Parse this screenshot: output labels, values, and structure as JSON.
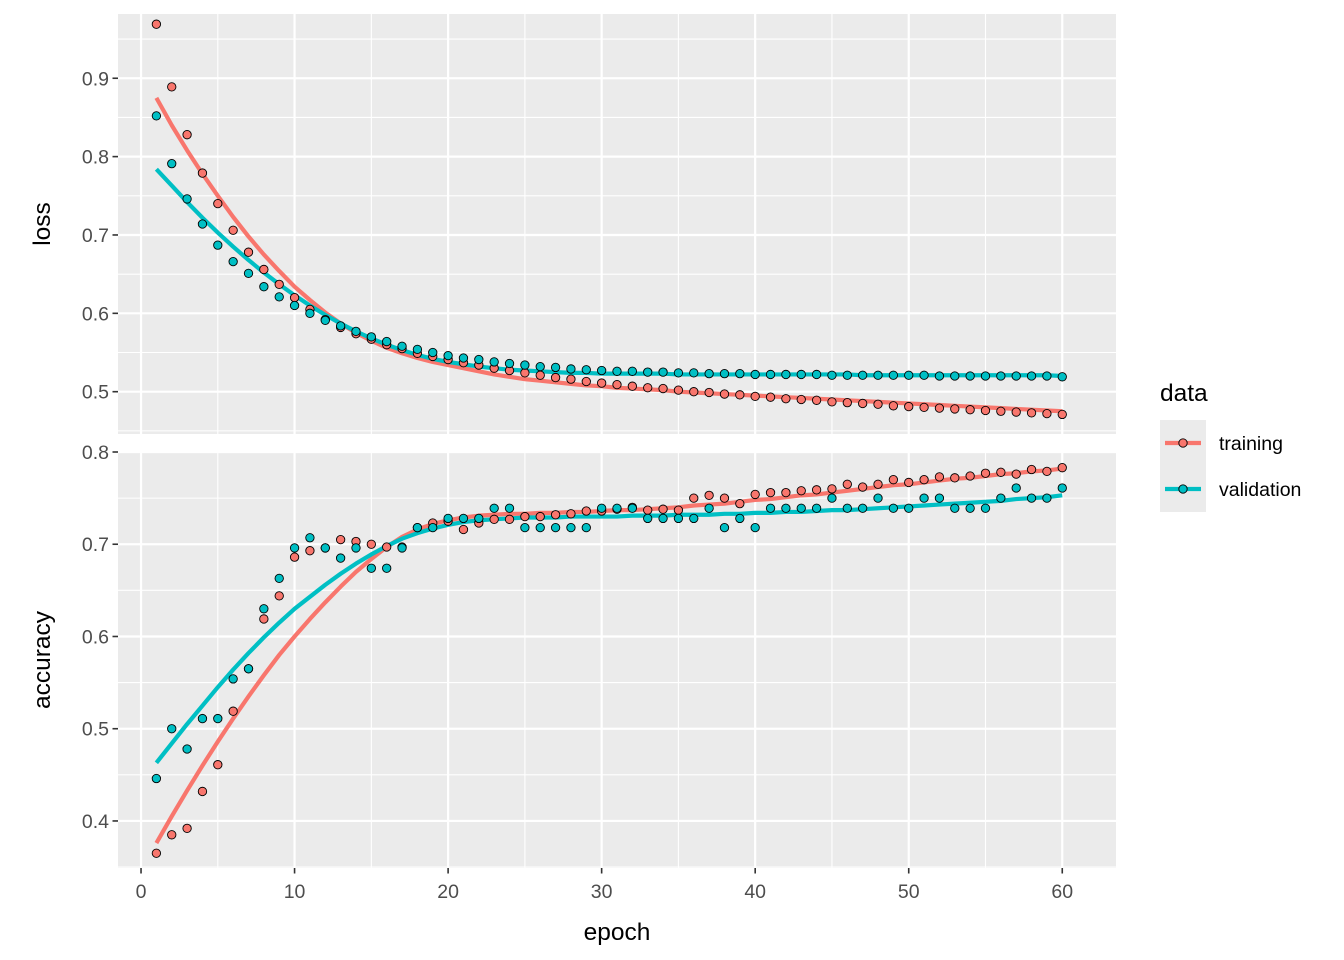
{
  "chart_data": {
    "type": "scatter",
    "facets": [
      "loss",
      "accuracy"
    ],
    "xlabel": "epoch",
    "xlim": [
      -1.5,
      63.5
    ],
    "x_ticks": [
      0,
      10,
      20,
      30,
      40,
      50,
      60
    ],
    "legend": {
      "title": "data",
      "position": "right",
      "entries": [
        {
          "name": "training",
          "color": "#f8766d"
        },
        {
          "name": "validation",
          "color": "#00bfc4"
        }
      ]
    },
    "panels": [
      {
        "name": "loss",
        "ylabel": "loss",
        "ylim": [
          0.446,
          0.982
        ],
        "y_ticks": [
          0.5,
          0.6,
          0.7,
          0.8,
          0.9
        ],
        "y_tick_labels": [
          "0.5",
          "0.6",
          "0.7",
          "0.8",
          "0.9"
        ],
        "series": [
          {
            "name": "training",
            "color": "#f8766d",
            "x": [
              1,
              2,
              3,
              4,
              5,
              6,
              7,
              8,
              9,
              10,
              11,
              12,
              13,
              14,
              15,
              16,
              17,
              18,
              19,
              20,
              21,
              22,
              23,
              24,
              25,
              26,
              27,
              28,
              29,
              30,
              31,
              32,
              33,
              34,
              35,
              36,
              37,
              38,
              39,
              40,
              41,
              42,
              43,
              44,
              45,
              46,
              47,
              48,
              49,
              50,
              51,
              52,
              53,
              54,
              55,
              56,
              57,
              58,
              59,
              60
            ],
            "y": [
              0.969,
              0.889,
              0.828,
              0.779,
              0.74,
              0.706,
              0.678,
              0.656,
              0.637,
              0.62,
              0.605,
              0.592,
              0.582,
              0.574,
              0.567,
              0.56,
              0.555,
              0.549,
              0.545,
              0.541,
              0.537,
              0.534,
              0.53,
              0.527,
              0.524,
              0.521,
              0.518,
              0.516,
              0.513,
              0.511,
              0.509,
              0.507,
              0.505,
              0.504,
              0.502,
              0.5,
              0.499,
              0.497,
              0.496,
              0.494,
              0.493,
              0.491,
              0.49,
              0.489,
              0.487,
              0.486,
              0.485,
              0.484,
              0.482,
              0.481,
              0.48,
              0.479,
              0.478,
              0.477,
              0.476,
              0.475,
              0.474,
              0.473,
              0.472,
              0.471
            ],
            "trend": [
              0.875,
              0.84,
              0.808,
              0.778,
              0.75,
              0.723,
              0.698,
              0.675,
              0.654,
              0.634,
              0.617,
              0.601,
              0.587,
              0.575,
              0.565,
              0.556,
              0.549,
              0.543,
              0.538,
              0.534,
              0.53,
              0.526,
              0.522,
              0.519,
              0.516,
              0.514,
              0.512,
              0.51,
              0.508,
              0.507,
              0.505,
              0.504,
              0.503,
              0.502,
              0.5,
              0.499,
              0.498,
              0.497,
              0.496,
              0.495,
              0.494,
              0.493,
              0.492,
              0.491,
              0.49,
              0.489,
              0.488,
              0.487,
              0.486,
              0.485,
              0.484,
              0.483,
              0.482,
              0.481,
              0.48,
              0.479,
              0.478,
              0.477,
              0.476,
              0.475
            ]
          },
          {
            "name": "validation",
            "color": "#00bfc4",
            "x": [
              1,
              2,
              3,
              4,
              5,
              6,
              7,
              8,
              9,
              10,
              11,
              12,
              13,
              14,
              15,
              16,
              17,
              18,
              19,
              20,
              21,
              22,
              23,
              24,
              25,
              26,
              27,
              28,
              29,
              30,
              31,
              32,
              33,
              34,
              35,
              36,
              37,
              38,
              39,
              40,
              41,
              42,
              43,
              44,
              45,
              46,
              47,
              48,
              49,
              50,
              51,
              52,
              53,
              54,
              55,
              56,
              57,
              58,
              59,
              60
            ],
            "y": [
              0.852,
              0.791,
              0.746,
              0.714,
              0.687,
              0.666,
              0.651,
              0.634,
              0.621,
              0.61,
              0.6,
              0.591,
              0.584,
              0.577,
              0.57,
              0.564,
              0.558,
              0.554,
              0.55,
              0.546,
              0.543,
              0.541,
              0.538,
              0.536,
              0.534,
              0.532,
              0.531,
              0.529,
              0.528,
              0.527,
              0.526,
              0.526,
              0.525,
              0.525,
              0.524,
              0.524,
              0.523,
              0.523,
              0.523,
              0.522,
              0.522,
              0.522,
              0.522,
              0.522,
              0.521,
              0.521,
              0.521,
              0.521,
              0.521,
              0.521,
              0.521,
              0.52,
              0.52,
              0.52,
              0.52,
              0.52,
              0.52,
              0.52,
              0.52,
              0.519
            ],
            "trend": [
              0.784,
              0.763,
              0.742,
              0.722,
              0.703,
              0.685,
              0.668,
              0.652,
              0.637,
              0.623,
              0.61,
              0.598,
              0.587,
              0.577,
              0.568,
              0.56,
              0.553,
              0.547,
              0.542,
              0.538,
              0.535,
              0.532,
              0.53,
              0.528,
              0.527,
              0.526,
              0.525,
              0.524,
              0.524,
              0.523,
              0.523,
              0.523,
              0.523,
              0.523,
              0.522,
              0.522,
              0.522,
              0.522,
              0.522,
              0.522,
              0.522,
              0.522,
              0.522,
              0.522,
              0.522,
              0.522,
              0.521,
              0.521,
              0.521,
              0.521,
              0.521,
              0.521,
              0.521,
              0.521,
              0.521,
              0.521,
              0.521,
              0.521,
              0.521,
              0.52
            ]
          }
        ]
      },
      {
        "name": "accuracy",
        "ylabel": "accuracy",
        "ylim": [
          0.349,
          0.8
        ],
        "y_ticks": [
          0.4,
          0.5,
          0.6,
          0.7,
          0.8
        ],
        "y_tick_labels": [
          "0.4",
          "0.5",
          "0.6",
          "0.7",
          "0.8"
        ],
        "series": [
          {
            "name": "training",
            "color": "#f8766d",
            "x": [
              1,
              2,
              3,
              4,
              5,
              6,
              7,
              8,
              9,
              10,
              11,
              12,
              13,
              14,
              15,
              16,
              17,
              18,
              19,
              20,
              21,
              22,
              23,
              24,
              25,
              26,
              27,
              28,
              29,
              30,
              31,
              32,
              33,
              34,
              35,
              36,
              37,
              38,
              39,
              40,
              41,
              42,
              43,
              44,
              45,
              46,
              47,
              48,
              49,
              50,
              51,
              52,
              53,
              54,
              55,
              56,
              57,
              58,
              59,
              60
            ],
            "y": [
              0.365,
              0.385,
              0.392,
              0.432,
              0.461,
              0.519,
              0.565,
              0.619,
              0.644,
              0.686,
              0.693,
              0.696,
              0.705,
              0.703,
              0.7,
              0.697,
              0.697,
              0.718,
              0.723,
              0.725,
              0.716,
              0.723,
              0.727,
              0.727,
              0.73,
              0.73,
              0.732,
              0.733,
              0.736,
              0.736,
              0.738,
              0.74,
              0.737,
              0.738,
              0.737,
              0.75,
              0.753,
              0.75,
              0.744,
              0.754,
              0.756,
              0.756,
              0.758,
              0.759,
              0.76,
              0.765,
              0.762,
              0.765,
              0.77,
              0.767,
              0.77,
              0.773,
              0.772,
              0.774,
              0.777,
              0.778,
              0.776,
              0.781,
              0.779,
              0.783
            ],
            "trend": [
              0.376,
              0.405,
              0.433,
              0.46,
              0.486,
              0.511,
              0.535,
              0.558,
              0.58,
              0.6,
              0.619,
              0.637,
              0.654,
              0.67,
              0.684,
              0.697,
              0.708,
              0.716,
              0.722,
              0.726,
              0.729,
              0.731,
              0.732,
              0.733,
              0.733,
              0.734,
              0.734,
              0.735,
              0.735,
              0.736,
              0.737,
              0.737,
              0.738,
              0.739,
              0.74,
              0.742,
              0.743,
              0.744,
              0.746,
              0.748,
              0.749,
              0.751,
              0.753,
              0.754,
              0.756,
              0.758,
              0.76,
              0.762,
              0.764,
              0.765,
              0.767,
              0.769,
              0.771,
              0.772,
              0.774,
              0.776,
              0.777,
              0.779,
              0.78,
              0.782
            ]
          },
          {
            "name": "validation",
            "color": "#00bfc4",
            "x": [
              1,
              2,
              3,
              4,
              5,
              6,
              7,
              8,
              9,
              10,
              11,
              12,
              13,
              14,
              15,
              16,
              17,
              18,
              19,
              20,
              21,
              22,
              23,
              24,
              25,
              26,
              27,
              28,
              29,
              30,
              31,
              32,
              33,
              34,
              35,
              36,
              37,
              38,
              39,
              40,
              41,
              42,
              43,
              44,
              45,
              46,
              47,
              48,
              49,
              50,
              51,
              52,
              53,
              54,
              55,
              56,
              57,
              58,
              59,
              60
            ],
            "y": [
              0.446,
              0.5,
              0.478,
              0.511,
              0.511,
              0.554,
              0.565,
              0.63,
              0.663,
              0.696,
              0.707,
              0.696,
              0.685,
              0.696,
              0.674,
              0.674,
              0.696,
              0.718,
              0.718,
              0.728,
              0.728,
              0.728,
              0.739,
              0.739,
              0.718,
              0.718,
              0.718,
              0.718,
              0.718,
              0.739,
              0.739,
              0.739,
              0.728,
              0.728,
              0.728,
              0.728,
              0.739,
              0.718,
              0.728,
              0.718,
              0.739,
              0.739,
              0.739,
              0.739,
              0.75,
              0.739,
              0.739,
              0.75,
              0.739,
              0.739,
              0.75,
              0.75,
              0.739,
              0.739,
              0.739,
              0.75,
              0.761,
              0.75,
              0.75,
              0.761
            ],
            "trend": [
              0.463,
              0.484,
              0.505,
              0.525,
              0.545,
              0.564,
              0.582,
              0.599,
              0.615,
              0.63,
              0.643,
              0.656,
              0.668,
              0.679,
              0.689,
              0.698,
              0.706,
              0.712,
              0.717,
              0.721,
              0.724,
              0.726,
              0.727,
              0.728,
              0.729,
              0.729,
              0.729,
              0.73,
              0.73,
              0.73,
              0.73,
              0.731,
              0.731,
              0.731,
              0.732,
              0.732,
              0.732,
              0.733,
              0.733,
              0.734,
              0.734,
              0.735,
              0.735,
              0.736,
              0.737,
              0.737,
              0.738,
              0.739,
              0.74,
              0.741,
              0.742,
              0.743,
              0.744,
              0.745,
              0.746,
              0.747,
              0.749,
              0.75,
              0.751,
              0.753
            ]
          }
        ]
      }
    ]
  }
}
